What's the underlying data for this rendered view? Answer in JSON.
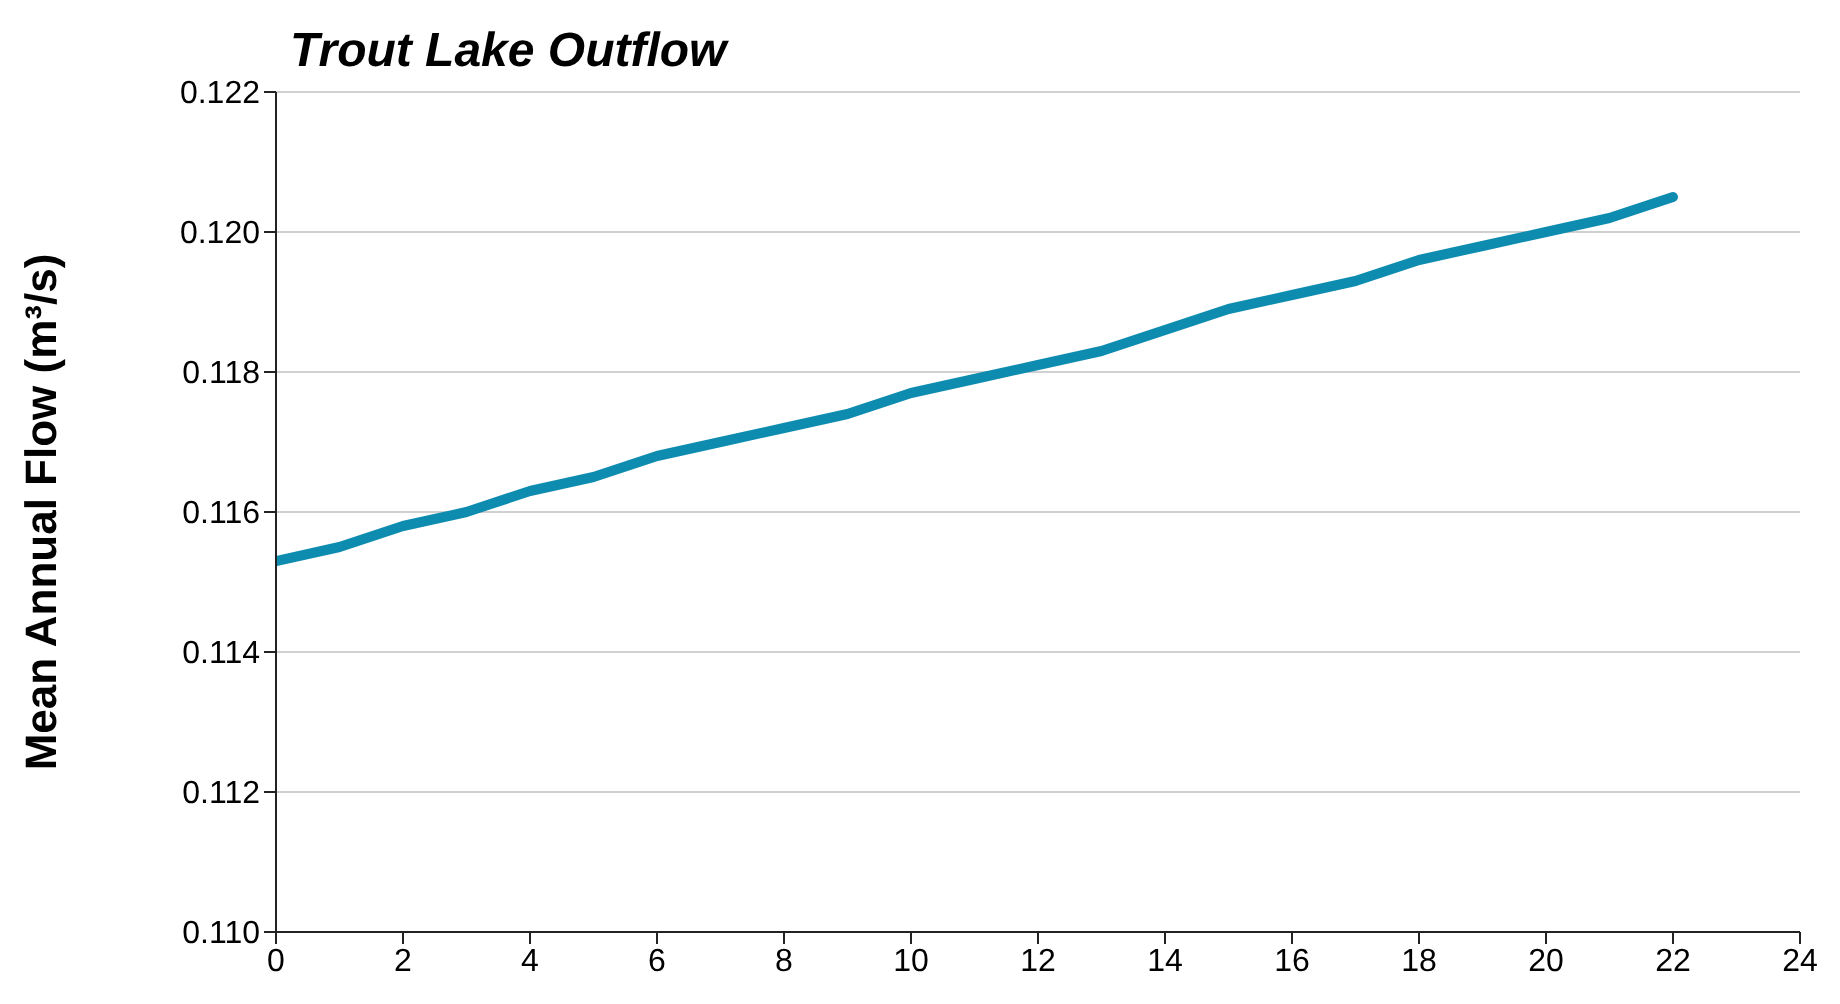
{
  "chart_data": {
    "type": "line",
    "title": "Trout Lake Outflow",
    "ylabel": "Mean Annual Flow (m³/s)",
    "x": [
      0,
      1,
      2,
      3,
      4,
      5,
      6,
      7,
      8,
      9,
      10,
      11,
      12,
      13,
      14,
      15,
      16,
      17,
      18,
      19,
      20,
      21,
      22
    ],
    "series": [
      {
        "color": "#0e8cb0",
        "values": [
          0.1153,
          0.1155,
          0.1158,
          0.116,
          0.1163,
          0.1165,
          0.1168,
          0.117,
          0.1172,
          0.1174,
          0.1177,
          0.1179,
          0.1181,
          0.1183,
          0.1186,
          0.1189,
          0.1191,
          0.1193,
          0.1196,
          0.1198,
          0.12,
          0.1202,
          0.1205
        ]
      }
    ],
    "xlim": [
      0,
      24
    ],
    "xticks": [
      0,
      2,
      4,
      6,
      8,
      10,
      12,
      14,
      16,
      18,
      20,
      22,
      24
    ],
    "ylim": [
      0.11,
      0.122
    ],
    "yticks": [
      {
        "value": 0.11,
        "label": "0.110"
      },
      0.112,
      0.114,
      0.116,
      0.118,
      {
        "value": 0.12,
        "label": "0.120"
      },
      0.122
    ],
    "grid": "y",
    "marker": "none",
    "line_style": "solid",
    "legend": false
  }
}
